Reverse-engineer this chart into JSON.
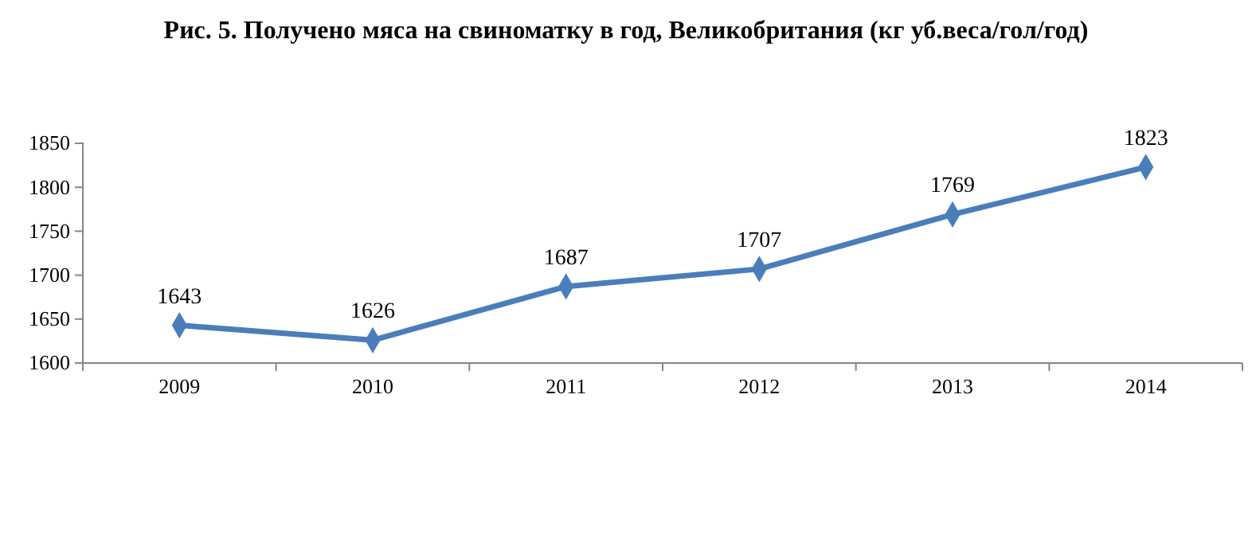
{
  "chart_data": {
    "type": "line",
    "title": "Рис. 5. Получено мяса на свиноматку в год, Великобритания (кг уб.веса/гол/год)",
    "categories": [
      "2009",
      "2010",
      "2011",
      "2012",
      "2013",
      "2014"
    ],
    "series": [
      {
        "color": "#4a7ebb",
        "values": [
          1643,
          1626,
          1687,
          1707,
          1769,
          1823
        ]
      }
    ],
    "ylim": [
      1600,
      1850
    ],
    "yticks": [
      1600,
      1650,
      1700,
      1750,
      1800,
      1850
    ],
    "grid": false,
    "marker": "diamond",
    "line_style": "solid",
    "data_labels": true
  }
}
